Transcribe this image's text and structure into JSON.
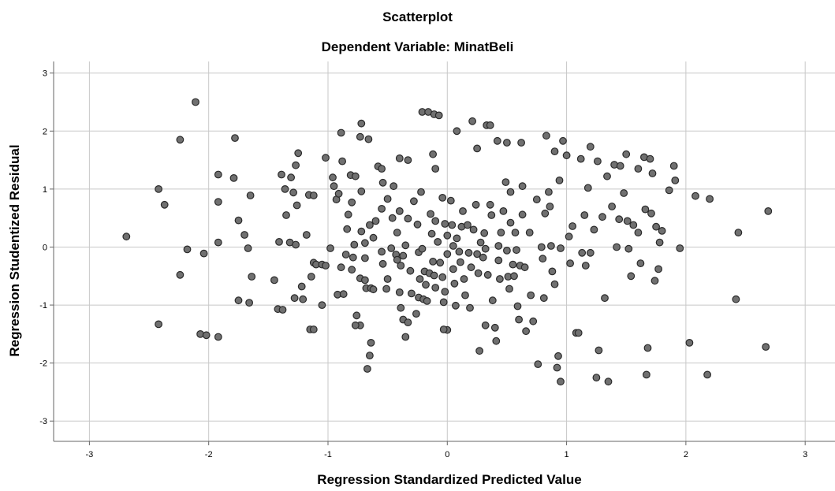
{
  "chart_data": {
    "type": "scatter",
    "title": "Scatterplot",
    "subtitle": "Dependent Variable: MinatBeli",
    "xlabel": "Regression Standardized Predicted Value",
    "ylabel": "Regression Studentized Residual",
    "xlim": [
      -3.3,
      3.25
    ],
    "ylim": [
      -3.35,
      3.2
    ],
    "xticks": [
      -3,
      -2,
      -1,
      0,
      1,
      2,
      3
    ],
    "yticks": [
      -3,
      -2,
      -1,
      0,
      1,
      2,
      3
    ],
    "grid": true,
    "marker_color": "#707070",
    "marker_edge": "#2a2a2a",
    "points": [
      [
        -2.69,
        0.18
      ],
      [
        -2.42,
        1.0
      ],
      [
        -2.37,
        0.73
      ],
      [
        -2.42,
        -1.33
      ],
      [
        -2.24,
        1.85
      ],
      [
        -2.24,
        -0.48
      ],
      [
        -2.18,
        -0.04
      ],
      [
        -2.11,
        2.5
      ],
      [
        -2.04,
        -0.11
      ],
      [
        -2.07,
        -1.5
      ],
      [
        -2.02,
        -1.52
      ],
      [
        -1.92,
        1.25
      ],
      [
        -1.92,
        0.78
      ],
      [
        -1.92,
        0.08
      ],
      [
        -1.92,
        -1.55
      ],
      [
        -1.78,
        1.88
      ],
      [
        -1.79,
        1.19
      ],
      [
        -1.75,
        0.46
      ],
      [
        -1.7,
        0.21
      ],
      [
        -1.67,
        -0.02
      ],
      [
        -1.65,
        0.89
      ],
      [
        -1.64,
        -0.51
      ],
      [
        -1.66,
        -0.96
      ],
      [
        -1.75,
        -0.92
      ],
      [
        -1.45,
        -0.57
      ],
      [
        -1.41,
        0.09
      ],
      [
        -1.42,
        -1.07
      ],
      [
        -1.38,
        -1.08
      ],
      [
        -1.39,
        1.25
      ],
      [
        -1.36,
        1.0
      ],
      [
        -1.35,
        0.55
      ],
      [
        -1.32,
        0.08
      ],
      [
        -1.31,
        1.2
      ],
      [
        -1.27,
        0.04
      ],
      [
        -1.29,
        0.94
      ],
      [
        -1.26,
        0.72
      ],
      [
        -1.27,
        1.41
      ],
      [
        -1.25,
        1.62
      ],
      [
        -1.21,
        -0.9
      ],
      [
        -1.28,
        -0.88
      ],
      [
        -1.22,
        -0.68
      ],
      [
        -1.18,
        0.21
      ],
      [
        -1.16,
        0.9
      ],
      [
        -1.12,
        0.89
      ],
      [
        -1.15,
        -1.42
      ],
      [
        -1.12,
        -1.42
      ],
      [
        -1.12,
        -0.27
      ],
      [
        -1.1,
        -0.3
      ],
      [
        -1.14,
        -0.51
      ],
      [
        -1.05,
        -0.3
      ],
      [
        -1.02,
        -0.32
      ],
      [
        -0.98,
        -0.02
      ],
      [
        -1.05,
        -1.0
      ],
      [
        -1.02,
        1.54
      ],
      [
        -0.96,
        1.2
      ],
      [
        -0.93,
        0.82
      ],
      [
        -0.91,
        0.92
      ],
      [
        -0.95,
        1.05
      ],
      [
        -0.89,
        1.97
      ],
      [
        -0.88,
        1.48
      ],
      [
        -0.89,
        -0.35
      ],
      [
        -0.92,
        -0.82
      ],
      [
        -0.87,
        -0.81
      ],
      [
        -0.85,
        -0.13
      ],
      [
        -0.84,
        0.31
      ],
      [
        -0.83,
        0.56
      ],
      [
        -0.8,
        0.77
      ],
      [
        -0.81,
        1.24
      ],
      [
        -0.77,
        1.22
      ],
      [
        -0.79,
        -0.18
      ],
      [
        -0.8,
        -0.39
      ],
      [
        -0.78,
        0.04
      ],
      [
        -0.76,
        -1.18
      ],
      [
        -0.73,
        -1.35
      ],
      [
        -0.77,
        -1.35
      ],
      [
        -0.73,
        1.9
      ],
      [
        -0.72,
        2.13
      ],
      [
        -0.72,
        0.96
      ],
      [
        -0.72,
        0.27
      ],
      [
        -0.73,
        -0.54
      ],
      [
        -0.69,
        -0.57
      ],
      [
        -0.66,
        1.86
      ],
      [
        -0.69,
        0.07
      ],
      [
        -0.69,
        -0.19
      ],
      [
        -0.68,
        -0.71
      ],
      [
        -0.64,
        -0.71
      ],
      [
        -0.62,
        -0.73
      ],
      [
        -0.64,
        -1.65
      ],
      [
        -0.65,
        -1.87
      ],
      [
        -0.67,
        -2.1
      ],
      [
        -0.65,
        0.38
      ],
      [
        -0.62,
        0.16
      ],
      [
        -0.6,
        0.45
      ],
      [
        -0.58,
        1.39
      ],
      [
        -0.55,
        1.35
      ],
      [
        -0.55,
        0.66
      ],
      [
        -0.55,
        -0.08
      ],
      [
        -0.54,
        -0.29
      ],
      [
        -0.54,
        1.11
      ],
      [
        -0.5,
        0.83
      ],
      [
        -0.5,
        -0.55
      ],
      [
        -0.51,
        -0.72
      ],
      [
        -0.47,
        -0.02
      ],
      [
        -0.46,
        0.5
      ],
      [
        -0.45,
        1.05
      ],
      [
        -0.43,
        -0.13
      ],
      [
        -0.42,
        0.25
      ],
      [
        -0.4,
        0.62
      ],
      [
        -0.39,
        -0.32
      ],
      [
        -0.4,
        -0.78
      ],
      [
        -0.39,
        -1.05
      ],
      [
        -0.37,
        -1.25
      ],
      [
        -0.35,
        -1.55
      ],
      [
        -0.33,
        -1.3
      ],
      [
        -0.33,
        1.5
      ],
      [
        -0.4,
        1.53
      ],
      [
        -0.42,
        -0.22
      ],
      [
        -0.37,
        -0.15
      ],
      [
        -0.35,
        0.03
      ],
      [
        -0.33,
        0.49
      ],
      [
        -0.31,
        -0.41
      ],
      [
        -0.3,
        -0.8
      ],
      [
        -0.28,
        0.79
      ],
      [
        -0.25,
        0.39
      ],
      [
        -0.24,
        -0.09
      ],
      [
        -0.26,
        -1.15
      ],
      [
        -0.24,
        -0.87
      ],
      [
        -0.23,
        -0.55
      ],
      [
        -0.22,
        0.95
      ],
      [
        -0.21,
        -0.03
      ],
      [
        -0.2,
        -0.9
      ],
      [
        -0.19,
        -0.42
      ],
      [
        -0.21,
        2.33
      ],
      [
        -0.16,
        2.33
      ],
      [
        -0.11,
        2.29
      ],
      [
        -0.07,
        2.27
      ],
      [
        -0.12,
        1.6
      ],
      [
        -0.1,
        1.35
      ],
      [
        -0.18,
        -0.65
      ],
      [
        -0.17,
        -0.93
      ],
      [
        -0.15,
        -0.45
      ],
      [
        -0.14,
        0.57
      ],
      [
        -0.13,
        0.23
      ],
      [
        -0.12,
        -0.25
      ],
      [
        -0.11,
        -0.49
      ],
      [
        -0.1,
        -0.7
      ],
      [
        -0.1,
        0.45
      ],
      [
        -0.08,
        0.09
      ],
      [
        -0.06,
        -0.27
      ],
      [
        -0.04,
        0.85
      ],
      [
        -0.04,
        -0.52
      ],
      [
        -0.03,
        -0.95
      ],
      [
        -0.02,
        -0.77
      ],
      [
        -0.02,
        0.4
      ],
      [
        0.0,
        0.2
      ],
      [
        0.0,
        -0.12
      ],
      [
        0.0,
        -1.43
      ],
      [
        -0.03,
        -1.42
      ],
      [
        0.03,
        0.8
      ],
      [
        0.04,
        0.38
      ],
      [
        0.05,
        0.02
      ],
      [
        0.05,
        -0.38
      ],
      [
        0.06,
        -0.63
      ],
      [
        0.07,
        -1.01
      ],
      [
        0.08,
        2.0
      ],
      [
        0.08,
        0.15
      ],
      [
        0.1,
        -0.08
      ],
      [
        0.11,
        -0.26
      ],
      [
        0.12,
        0.35
      ],
      [
        0.13,
        0.62
      ],
      [
        0.14,
        -0.55
      ],
      [
        0.15,
        -0.83
      ],
      [
        0.17,
        0.38
      ],
      [
        0.18,
        -0.1
      ],
      [
        0.19,
        -1.05
      ],
      [
        0.2,
        -0.35
      ],
      [
        0.21,
        2.17
      ],
      [
        0.22,
        0.3
      ],
      [
        0.24,
        0.73
      ],
      [
        0.25,
        1.7
      ],
      [
        0.25,
        -0.12
      ],
      [
        0.26,
        -0.45
      ],
      [
        0.27,
        -1.79
      ],
      [
        0.28,
        0.08
      ],
      [
        0.3,
        -0.18
      ],
      [
        0.31,
        0.24
      ],
      [
        0.32,
        -0.03
      ],
      [
        0.32,
        -1.35
      ],
      [
        0.33,
        2.1
      ],
      [
        0.36,
        2.1
      ],
      [
        0.34,
        -0.48
      ],
      [
        0.36,
        0.73
      ],
      [
        0.37,
        0.55
      ],
      [
        0.38,
        -0.92
      ],
      [
        0.4,
        -1.39
      ],
      [
        0.41,
        -1.62
      ],
      [
        0.42,
        1.83
      ],
      [
        0.43,
        0.02
      ],
      [
        0.43,
        -0.23
      ],
      [
        0.44,
        -0.55
      ],
      [
        0.45,
        0.25
      ],
      [
        0.47,
        0.62
      ],
      [
        0.49,
        1.12
      ],
      [
        0.5,
        1.8
      ],
      [
        0.5,
        -0.06
      ],
      [
        0.51,
        -0.51
      ],
      [
        0.52,
        -0.72
      ],
      [
        0.53,
        0.95
      ],
      [
        0.53,
        0.42
      ],
      [
        0.55,
        -0.3
      ],
      [
        0.56,
        -0.5
      ],
      [
        0.57,
        0.25
      ],
      [
        0.58,
        -0.05
      ],
      [
        0.59,
        -1.02
      ],
      [
        0.6,
        -1.25
      ],
      [
        0.61,
        -0.32
      ],
      [
        0.62,
        1.8
      ],
      [
        0.63,
        1.05
      ],
      [
        0.63,
        0.56
      ],
      [
        0.65,
        -0.35
      ],
      [
        0.66,
        -1.45
      ],
      [
        0.69,
        0.25
      ],
      [
        0.7,
        -0.83
      ],
      [
        0.72,
        -1.28
      ],
      [
        0.75,
        0.82
      ],
      [
        0.76,
        -2.02
      ],
      [
        0.79,
        0.0
      ],
      [
        0.8,
        -0.2
      ],
      [
        0.81,
        -0.88
      ],
      [
        0.82,
        0.58
      ],
      [
        0.83,
        1.92
      ],
      [
        0.85,
        0.95
      ],
      [
        0.86,
        0.7
      ],
      [
        0.87,
        0.02
      ],
      [
        0.88,
        -0.42
      ],
      [
        0.9,
        1.65
      ],
      [
        0.9,
        -0.64
      ],
      [
        0.92,
        -2.08
      ],
      [
        0.93,
        -1.88
      ],
      [
        0.94,
        1.15
      ],
      [
        0.95,
        -2.32
      ],
      [
        0.95,
        -0.02
      ],
      [
        0.97,
        1.83
      ],
      [
        1.0,
        1.58
      ],
      [
        1.02,
        0.18
      ],
      [
        1.03,
        -0.28
      ],
      [
        1.05,
        0.36
      ],
      [
        1.08,
        -1.48
      ],
      [
        1.1,
        -1.48
      ],
      [
        1.12,
        1.52
      ],
      [
        1.13,
        -0.1
      ],
      [
        1.15,
        0.55
      ],
      [
        1.16,
        -0.32
      ],
      [
        1.18,
        1.02
      ],
      [
        1.2,
        1.73
      ],
      [
        1.2,
        -0.1
      ],
      [
        1.23,
        0.3
      ],
      [
        1.25,
        -2.25
      ],
      [
        1.26,
        1.48
      ],
      [
        1.27,
        -1.78
      ],
      [
        1.3,
        0.52
      ],
      [
        1.32,
        -0.88
      ],
      [
        1.34,
        1.22
      ],
      [
        1.35,
        -2.32
      ],
      [
        1.38,
        0.7
      ],
      [
        1.4,
        1.42
      ],
      [
        1.42,
        0.0
      ],
      [
        1.44,
        0.48
      ],
      [
        1.45,
        1.4
      ],
      [
        1.48,
        0.93
      ],
      [
        1.5,
        1.6
      ],
      [
        1.51,
        0.45
      ],
      [
        1.52,
        -0.03
      ],
      [
        1.54,
        -0.5
      ],
      [
        1.56,
        0.38
      ],
      [
        1.6,
        1.35
      ],
      [
        1.6,
        0.25
      ],
      [
        1.62,
        -0.28
      ],
      [
        1.65,
        1.55
      ],
      [
        1.66,
        0.65
      ],
      [
        1.67,
        -2.2
      ],
      [
        1.68,
        -1.74
      ],
      [
        1.7,
        1.52
      ],
      [
        1.71,
        0.58
      ],
      [
        1.72,
        1.27
      ],
      [
        1.74,
        -0.58
      ],
      [
        1.75,
        0.35
      ],
      [
        1.77,
        -0.38
      ],
      [
        1.78,
        0.08
      ],
      [
        1.8,
        0.28
      ],
      [
        1.86,
        0.98
      ],
      [
        1.9,
        1.4
      ],
      [
        1.91,
        1.15
      ],
      [
        1.95,
        -0.02
      ],
      [
        2.03,
        -1.65
      ],
      [
        2.08,
        0.88
      ],
      [
        2.18,
        -2.2
      ],
      [
        2.2,
        0.83
      ],
      [
        2.42,
        -0.9
      ],
      [
        2.44,
        0.25
      ],
      [
        2.67,
        -1.72
      ],
      [
        2.69,
        0.62
      ]
    ]
  }
}
